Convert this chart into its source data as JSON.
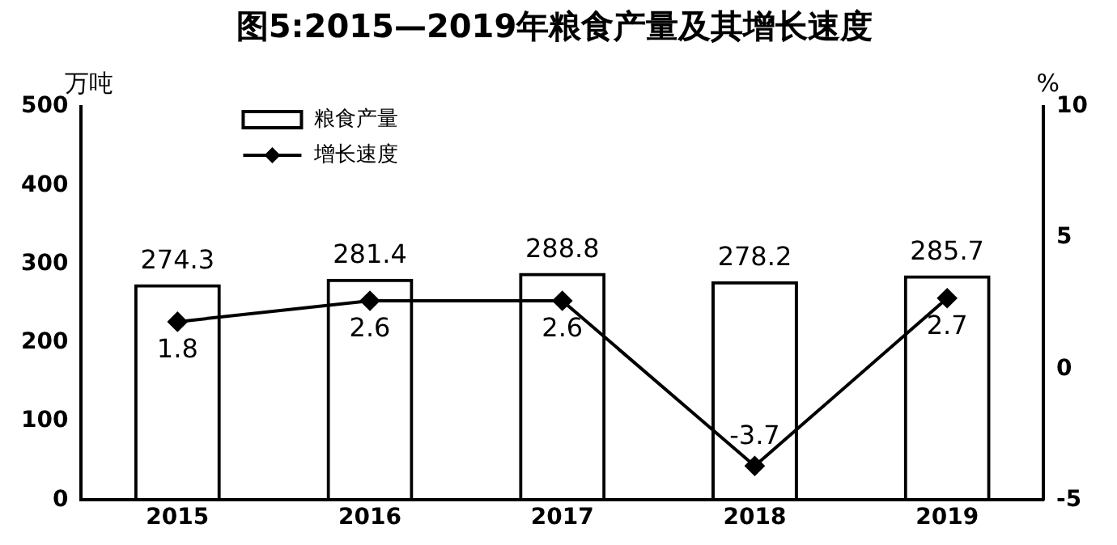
{
  "chart_data": {
    "type": "bar",
    "title": "图5:2015—2019年粮食产量及其增长速度",
    "ylabel": "万吨",
    "y2label": "%",
    "categories": [
      "2015",
      "2016",
      "2017",
      "2018",
      "2019"
    ],
    "series": [
      {
        "name": "粮食产量",
        "color": "#000000",
        "values": [
          274.3,
          281.4,
          288.8,
          278.2,
          285.7
        ]
      },
      {
        "name": "增长速度",
        "type": "line",
        "axis": "y2",
        "color": "#000000",
        "marker": "diamond",
        "values": [
          1.8,
          2.6,
          2.6,
          -3.7,
          2.7
        ]
      }
    ],
    "ylim": [
      0,
      500
    ],
    "yticks": [
      0,
      100,
      200,
      300,
      400,
      500
    ],
    "y2lim": [
      -5,
      10
    ],
    "y2ticks": [
      -5,
      0,
      5,
      10
    ],
    "grid": false,
    "legend": "top left",
    "data_labels": true
  }
}
